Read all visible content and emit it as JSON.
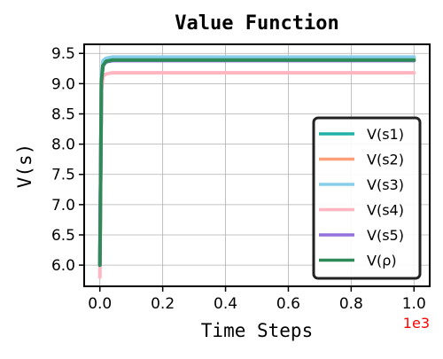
{
  "chart_data": {
    "type": "line",
    "title": "Value Function",
    "xlabel": "Time Steps",
    "ylabel": "V(s)",
    "x_offset_label": "1e3",
    "x_offset_color": "#ff0000",
    "xlim": [
      -0.05,
      1.05
    ],
    "ylim": [
      5.65,
      9.65
    ],
    "xticks": [
      0.0,
      0.2,
      0.4,
      0.6,
      0.8,
      1.0
    ],
    "xtick_labels": [
      "0.0",
      "0.2",
      "0.4",
      "0.6",
      "0.8",
      "1.0"
    ],
    "yticks": [
      6.0,
      6.5,
      7.0,
      7.5,
      8.0,
      8.5,
      9.0,
      9.5
    ],
    "ytick_labels": [
      "6.0",
      "6.5",
      "7.0",
      "7.5",
      "8.0",
      "8.5",
      "9.0",
      "9.5"
    ],
    "grid": true,
    "legend_position": "lower-right",
    "series": [
      {
        "name": "V(s1)",
        "color": "#20b2aa",
        "start": 6.0,
        "final": 9.42,
        "x": [
          0.0,
          0.005,
          0.01,
          0.02,
          0.04,
          0.08,
          1.0
        ],
        "y": [
          6.0,
          9.1,
          9.35,
          9.4,
          9.42,
          9.42,
          9.42
        ]
      },
      {
        "name": "V(s2)",
        "color": "#ffa07a",
        "start": 6.0,
        "final": 9.42,
        "x": [
          0.0,
          0.005,
          0.01,
          0.02,
          0.04,
          0.08,
          1.0
        ],
        "y": [
          6.0,
          9.1,
          9.35,
          9.4,
          9.42,
          9.42,
          9.42
        ]
      },
      {
        "name": "V(s3)",
        "color": "#87ceeb",
        "start": 6.0,
        "final": 9.44,
        "x": [
          0.0,
          0.005,
          0.01,
          0.02,
          0.04,
          0.08,
          1.0
        ],
        "y": [
          6.0,
          9.15,
          9.38,
          9.42,
          9.44,
          9.44,
          9.44
        ]
      },
      {
        "name": "V(s4)",
        "color": "#ffb6c1",
        "start": 5.8,
        "final": 9.18,
        "x": [
          0.0,
          0.005,
          0.01,
          0.02,
          0.04,
          0.08,
          1.0
        ],
        "y": [
          5.8,
          8.9,
          9.12,
          9.16,
          9.18,
          9.18,
          9.18
        ]
      },
      {
        "name": "V(s5)",
        "color": "#9370db",
        "start": 6.0,
        "final": 9.38,
        "x": [
          0.0,
          0.005,
          0.01,
          0.02,
          0.04,
          0.08,
          1.0
        ],
        "y": [
          6.0,
          9.05,
          9.3,
          9.36,
          9.38,
          9.38,
          9.38
        ]
      },
      {
        "name": "V(ρ)",
        "color": "#2e8b57",
        "start": 6.0,
        "final": 9.39,
        "x": [
          0.0,
          0.005,
          0.01,
          0.02,
          0.04,
          0.08,
          1.0
        ],
        "y": [
          6.0,
          9.05,
          9.3,
          9.37,
          9.39,
          9.39,
          9.39
        ]
      }
    ]
  }
}
